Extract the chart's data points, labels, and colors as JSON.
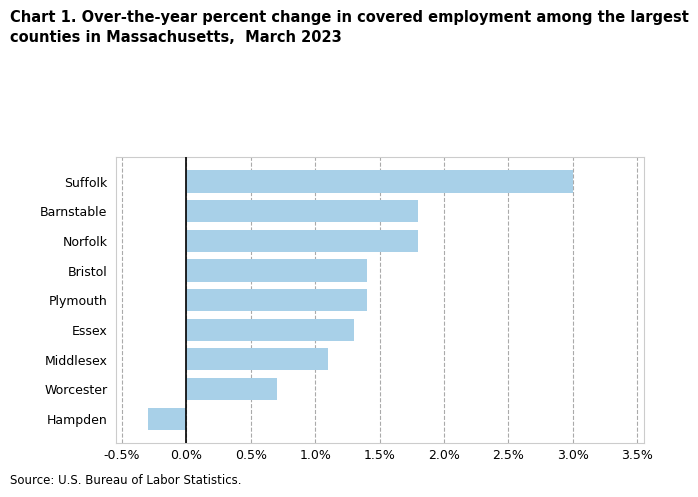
{
  "title": "Chart 1. Over-the-year percent change in covered employment among the largest\ncounties in Massachusetts,  March 2023",
  "source": "Source: U.S. Bureau of Labor Statistics.",
  "categories": [
    "Hampden",
    "Worcester",
    "Middlesex",
    "Essex",
    "Plymouth",
    "Bristol",
    "Norfolk",
    "Barnstable",
    "Suffolk"
  ],
  "values": [
    -0.3,
    0.7,
    1.1,
    1.3,
    1.4,
    1.4,
    1.8,
    1.8,
    3.0
  ],
  "bar_color": "#a8d0e8",
  "xlim_min": -0.55,
  "xlim_max": 3.55,
  "xticks": [
    -0.5,
    0.0,
    0.5,
    1.0,
    1.5,
    2.0,
    2.5,
    3.0,
    3.5
  ],
  "xtick_labels": [
    "-0.5%",
    "0.0%",
    "0.5%",
    "1.0%",
    "1.5%",
    "2.0%",
    "2.5%",
    "3.0%",
    "3.5%"
  ],
  "grid_color": "#aaaaaa",
  "background_color": "#ffffff",
  "bar_height": 0.75,
  "title_fontsize": 10.5,
  "tick_fontsize": 9,
  "source_fontsize": 8.5,
  "spine_color": "#cccccc"
}
